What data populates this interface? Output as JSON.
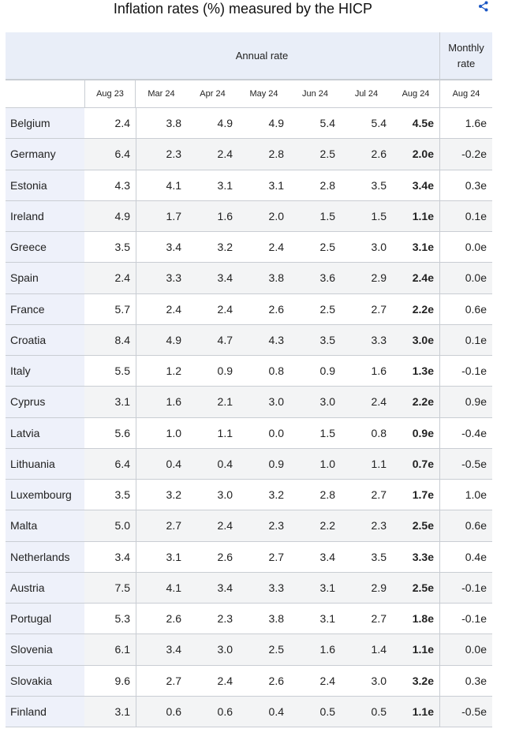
{
  "title": "Inflation rates (%) measured by the HICP",
  "table": {
    "groups": [
      "Annual rate",
      "Monthly rate"
    ],
    "columns": [
      "Aug 23",
      "Mar 24",
      "Apr 24",
      "May 24",
      "Jun 24",
      "Jul 24",
      "Aug 24",
      "Aug 24"
    ],
    "rows": [
      [
        "Belgium",
        "2.4",
        "3.8",
        "4.9",
        "4.9",
        "5.4",
        "5.4",
        "4.5e",
        "1.6e"
      ],
      [
        "Germany",
        "6.4",
        "2.3",
        "2.4",
        "2.8",
        "2.5",
        "2.6",
        "2.0e",
        "-0.2e"
      ],
      [
        "Estonia",
        "4.3",
        "4.1",
        "3.1",
        "3.1",
        "2.8",
        "3.5",
        "3.4e",
        "0.3e"
      ],
      [
        "Ireland",
        "4.9",
        "1.7",
        "1.6",
        "2.0",
        "1.5",
        "1.5",
        "1.1e",
        "0.1e"
      ],
      [
        "Greece",
        "3.5",
        "3.4",
        "3.2",
        "2.4",
        "2.5",
        "3.0",
        "3.1e",
        "0.0e"
      ],
      [
        "Spain",
        "2.4",
        "3.3",
        "3.4",
        "3.8",
        "3.6",
        "2.9",
        "2.4e",
        "0.0e"
      ],
      [
        "France",
        "5.7",
        "2.4",
        "2.4",
        "2.6",
        "2.5",
        "2.7",
        "2.2e",
        "0.6e"
      ],
      [
        "Croatia",
        "8.4",
        "4.9",
        "4.7",
        "4.3",
        "3.5",
        "3.3",
        "3.0e",
        "0.1e"
      ],
      [
        "Italy",
        "5.5",
        "1.2",
        "0.9",
        "0.8",
        "0.9",
        "1.6",
        "1.3e",
        "-0.1e"
      ],
      [
        "Cyprus",
        "3.1",
        "1.6",
        "2.1",
        "3.0",
        "3.0",
        "2.4",
        "2.2e",
        "0.9e"
      ],
      [
        "Latvia",
        "5.6",
        "1.0",
        "1.1",
        "0.0",
        "1.5",
        "0.8",
        "0.9e",
        "-0.4e"
      ],
      [
        "Lithuania",
        "6.4",
        "0.4",
        "0.4",
        "0.9",
        "1.0",
        "1.1",
        "0.7e",
        "-0.5e"
      ],
      [
        "Luxembourg",
        "3.5",
        "3.2",
        "3.0",
        "3.2",
        "2.8",
        "2.7",
        "1.7e",
        "1.0e"
      ],
      [
        "Malta",
        "5.0",
        "2.7",
        "2.4",
        "2.3",
        "2.2",
        "2.3",
        "2.5e",
        "0.6e"
      ],
      [
        "Netherlands",
        "3.4",
        "3.1",
        "2.6",
        "2.7",
        "3.4",
        "3.5",
        "3.3e",
        "0.4e"
      ],
      [
        "Austria",
        "7.5",
        "4.1",
        "3.4",
        "3.3",
        "3.1",
        "2.9",
        "2.5e",
        "-0.1e"
      ],
      [
        "Portugal",
        "5.3",
        "2.6",
        "2.3",
        "3.8",
        "3.1",
        "2.7",
        "1.8e",
        "-0.1e"
      ],
      [
        "Slovenia",
        "6.1",
        "3.4",
        "3.0",
        "2.5",
        "1.6",
        "1.4",
        "1.1e",
        "0.0e"
      ],
      [
        "Slovakia",
        "9.6",
        "2.7",
        "2.4",
        "2.6",
        "2.4",
        "3.0",
        "3.2e",
        "0.3e"
      ],
      [
        "Finland",
        "3.1",
        "0.6",
        "0.6",
        "0.4",
        "0.5",
        "0.5",
        "1.1e",
        "-0.5e"
      ]
    ]
  }
}
